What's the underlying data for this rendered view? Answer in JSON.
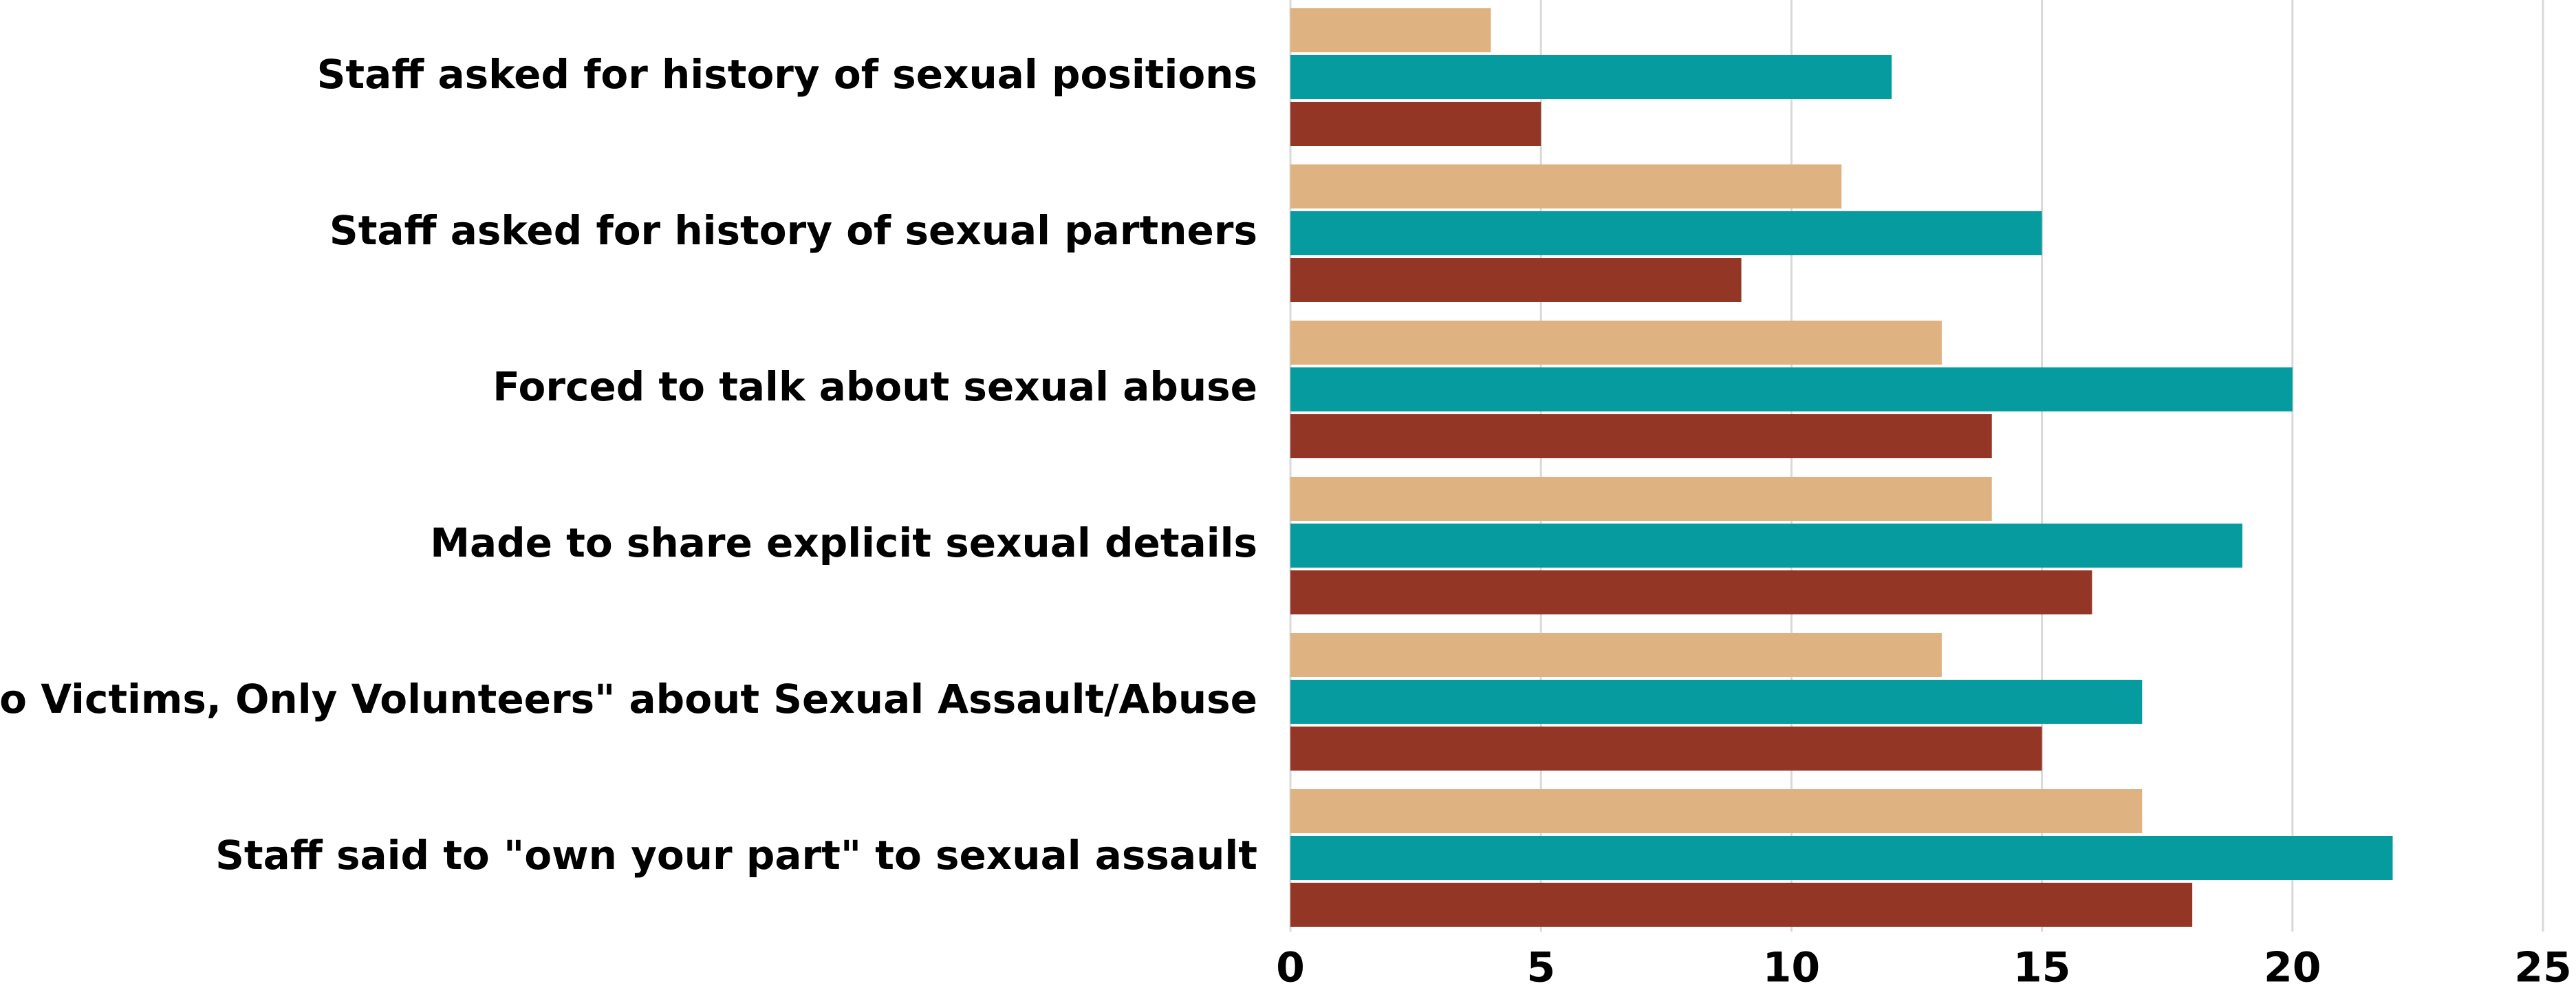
{
  "chart_data": {
    "type": "bar",
    "orientation": "horizontal",
    "categories": [
      "Staff asked for history of sexual positions",
      "Staff asked for history of sexual partners",
      "Forced to talk about sexual abuse",
      "Made to share explicit sexual details",
      "\"No Victims, Only Volunteers\" about Sexual Assault/Abuse",
      "Staff said to \"own your part\" to sexual assault"
    ],
    "series": [
      {
        "color": "#deb381",
        "values": [
          4,
          11,
          13,
          14,
          13,
          17
        ]
      },
      {
        "color": "#069b9e",
        "values": [
          12,
          15,
          20,
          19,
          17,
          22
        ]
      },
      {
        "color": "#943625",
        "values": [
          5,
          9,
          14,
          16,
          15,
          18
        ]
      }
    ],
    "xlim": [
      0,
      25
    ],
    "xticks": [
      0,
      5,
      10,
      15,
      20,
      25
    ],
    "grid": true
  }
}
